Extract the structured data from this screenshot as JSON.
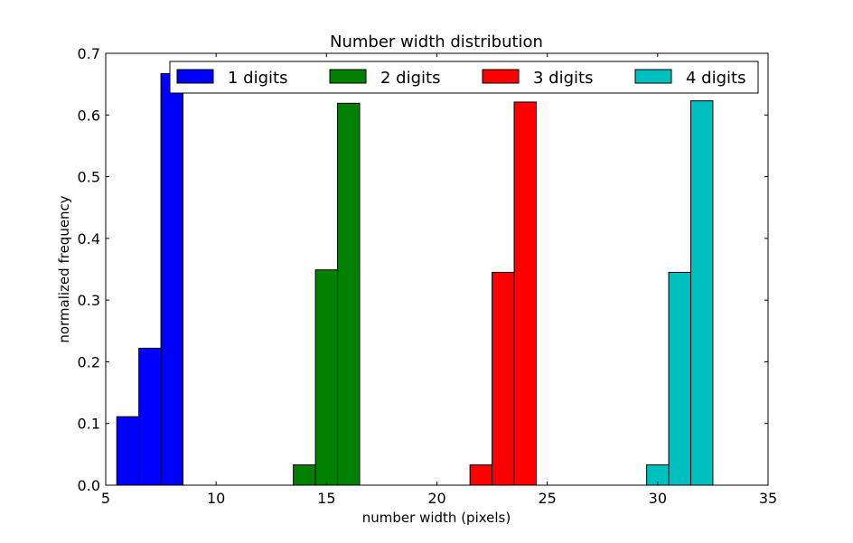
{
  "chart_data": {
    "type": "bar",
    "title": "Number width distribution",
    "xlabel": "number width (pixels)",
    "ylabel": "normalized frequency",
    "xlim": [
      5,
      35
    ],
    "ylim": [
      0,
      0.7
    ],
    "xticks": [
      "5",
      "10",
      "15",
      "20",
      "25",
      "30",
      "35"
    ],
    "yticks": [
      "0.0",
      "0.1",
      "0.2",
      "0.3",
      "0.4",
      "0.5",
      "0.6",
      "0.7"
    ],
    "grid": false,
    "legend_position": "top",
    "bar_width": 1,
    "series": [
      {
        "name": "1 digits",
        "color": "#0000ff",
        "x": [
          6,
          7,
          8
        ],
        "values": [
          0.111,
          0.222,
          0.667
        ]
      },
      {
        "name": "2 digits",
        "color": "#008000",
        "x": [
          14,
          15,
          16
        ],
        "values": [
          0.033,
          0.349,
          0.619
        ]
      },
      {
        "name": "3 digits",
        "color": "#ff0000",
        "x": [
          22,
          23,
          24
        ],
        "values": [
          0.033,
          0.345,
          0.621
        ]
      },
      {
        "name": "4 digits",
        "color": "#00bfbf",
        "x": [
          30,
          31,
          32
        ],
        "values": [
          0.033,
          0.345,
          0.623
        ]
      }
    ]
  }
}
